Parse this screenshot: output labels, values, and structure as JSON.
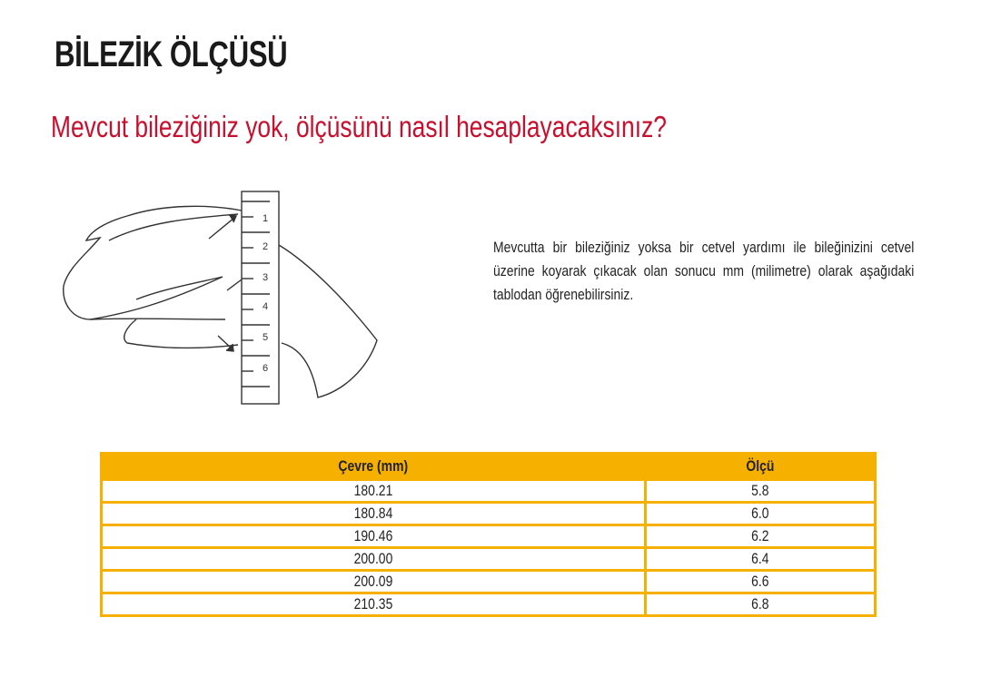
{
  "title": "BİLEZİK ÖLÇÜSÜ",
  "subtitle": "Mevcut bileziğiniz yok, ölçüsünü nasıl hesaplayacaksınız?",
  "description": "Mevcutta bir bileziğiniz yoksa bir cetvel yardımı ile bileğinizini cetvel üzerine koyarak çıkacak olan sonucu mm (milimetre) olarak aşağıdaki tablodan öğrenebilirsiniz.",
  "illustration": {
    "ruler_labels": [
      "1",
      "2",
      "3",
      "4",
      "5",
      "6"
    ]
  },
  "colors": {
    "accent": "#f6b100",
    "subtitle": "#c8102e"
  },
  "table": {
    "headers": [
      "Çevre (mm)",
      "Ölçü"
    ],
    "rows": [
      [
        "180.21",
        "5.8"
      ],
      [
        "180.84",
        "6.0"
      ],
      [
        "190.46",
        "6.2"
      ],
      [
        "200.00",
        "6.4"
      ],
      [
        "200.09",
        "6.6"
      ],
      [
        "210.35",
        "6.8"
      ]
    ]
  }
}
